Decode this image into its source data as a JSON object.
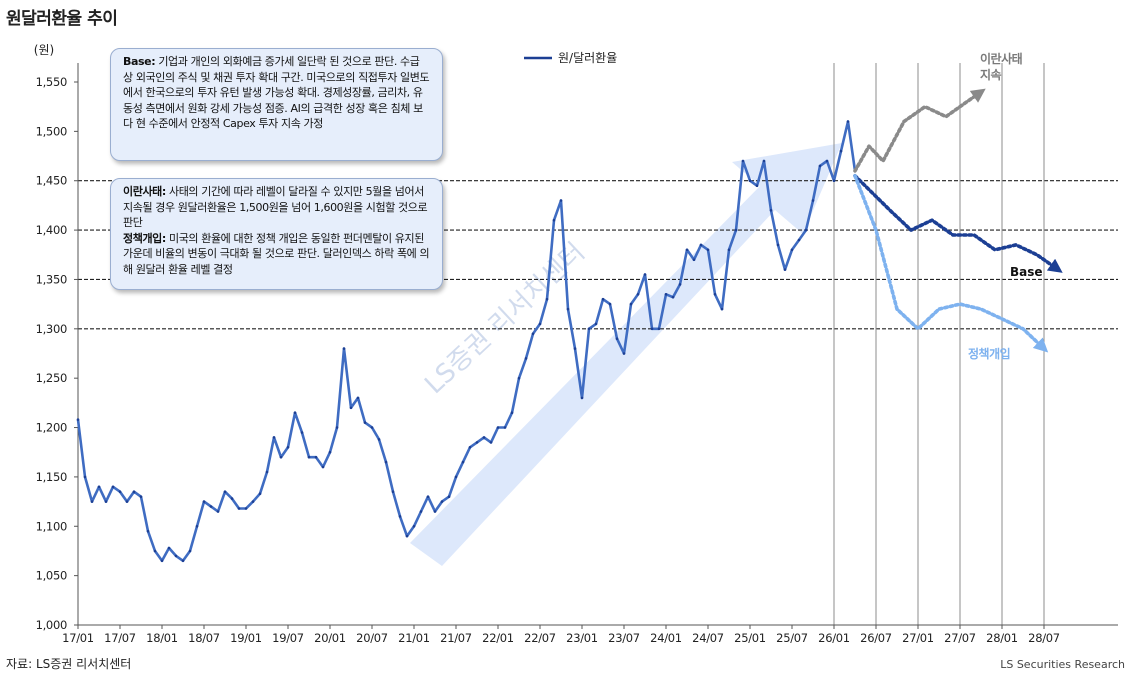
{
  "title": "원달러환율 추이",
  "source": "자료: LS증권 리서치센터",
  "credit": "LS Securities  Research",
  "watermark": "LS증권 리서치센터",
  "callouts": {
    "base": {
      "label": "Base:",
      "text": " 기업과 개인의 외화예금 증가세 일단락 된 것으로 판단. 수급 상 외국인의 주식 및 채권 투자 확대 구간. 미국으로의 직접투자 일변도에서 한국으로의 투자 유턴 발생 가능성 확대. 경제성장률, 금리차, 유동성 측면에서 원화 강세 가능성 점증. AI의 급격한 성장 혹은 침체 보다 현 수준에서 안정적 Capex 투자 지속 가정"
    },
    "iran": {
      "label": "이란사태:",
      "text": " 사태의 기간에 따라 레벨이 달라질 수 있지만 5월을 넘어서 지속될 경우 원달러환율은 1,500원을 넘어 1,600원을 시험할 것으로 판단"
    },
    "policy": {
      "label": "정책개입:",
      "text": " 미국의 환율에 대한 정책 개입은 동일한 펀더멘탈이 유지된 가운데 비율의 변동이 극대화 될 것으로 판단. 달러인덱스 하락 폭에 의해 원달러 환율 레벨 결정"
    }
  },
  "scenario_labels": {
    "iran_line1": "이란사태",
    "iran_line2": "지속",
    "base": "Base",
    "policy": "정책개입"
  },
  "colors": {
    "history": "#1c3f94",
    "history_mid": "#3f6cc2",
    "trend_arrow": "#dde8fb",
    "base_scenario": "#1c3f94",
    "iran_scenario": "#8a8a8a",
    "policy_scenario": "#7eb2ef"
  },
  "chart_data": {
    "type": "line",
    "title": "원달러환율 추이",
    "ylabel": "(원)",
    "xlabel": "",
    "ylim": [
      1000,
      1550
    ],
    "yticks": [
      1000,
      1050,
      1100,
      1150,
      1200,
      1250,
      1300,
      1350,
      1400,
      1450,
      1500,
      1550
    ],
    "ytick_labels": [
      "1,000",
      "1,050",
      "1,100",
      "1,150",
      "1,200",
      "1,250",
      "1,300",
      "1,350",
      "1,400",
      "1,450",
      "1,500",
      "1,550"
    ],
    "xticks": [
      "17/01",
      "17/07",
      "18/01",
      "18/07",
      "19/01",
      "19/07",
      "20/01",
      "20/07",
      "21/01",
      "21/07",
      "22/01",
      "22/07",
      "23/01",
      "23/07",
      "24/01",
      "24/07",
      "25/01",
      "25/07",
      "26/01",
      "26/07",
      "27/01",
      "27/07",
      "28/01",
      "28/07"
    ],
    "xlim": [
      "17/01",
      "28/12"
    ],
    "reference_lines_y": [
      1450,
      1400,
      1350,
      1300
    ],
    "vertical_lines_x": [
      "26/01",
      "26/07",
      "27/01",
      "27/07",
      "28/01",
      "28/07"
    ],
    "legend": {
      "position": "top-center",
      "entries": [
        "원/달러환율"
      ]
    },
    "grid": false,
    "series": [
      {
        "name": "원/달러환율",
        "style": "solid",
        "points": [
          [
            "17/01",
            1208
          ],
          [
            "17/02",
            1150
          ],
          [
            "17/03",
            1125
          ],
          [
            "17/04",
            1140
          ],
          [
            "17/05",
            1125
          ],
          [
            "17/06",
            1140
          ],
          [
            "17/07",
            1135
          ],
          [
            "17/08",
            1125
          ],
          [
            "17/09",
            1135
          ],
          [
            "17/10",
            1130
          ],
          [
            "17/11",
            1095
          ],
          [
            "17/12",
            1075
          ],
          [
            "18/01",
            1065
          ],
          [
            "18/02",
            1078
          ],
          [
            "18/03",
            1070
          ],
          [
            "18/04",
            1065
          ],
          [
            "18/05",
            1075
          ],
          [
            "18/06",
            1100
          ],
          [
            "18/07",
            1125
          ],
          [
            "18/08",
            1120
          ],
          [
            "18/09",
            1115
          ],
          [
            "18/10",
            1135
          ],
          [
            "18/11",
            1128
          ],
          [
            "18/12",
            1118
          ],
          [
            "19/01",
            1118
          ],
          [
            "19/02",
            1125
          ],
          [
            "19/03",
            1133
          ],
          [
            "19/04",
            1155
          ],
          [
            "19/05",
            1190
          ],
          [
            "19/06",
            1170
          ],
          [
            "19/07",
            1180
          ],
          [
            "19/08",
            1215
          ],
          [
            "19/09",
            1195
          ],
          [
            "19/10",
            1170
          ],
          [
            "19/11",
            1170
          ],
          [
            "19/12",
            1160
          ],
          [
            "20/01",
            1175
          ],
          [
            "20/02",
            1200
          ],
          [
            "20/03",
            1280
          ],
          [
            "20/04",
            1220
          ],
          [
            "20/05",
            1230
          ],
          [
            "20/06",
            1205
          ],
          [
            "20/07",
            1200
          ],
          [
            "20/08",
            1188
          ],
          [
            "20/09",
            1165
          ],
          [
            "20/10",
            1135
          ],
          [
            "20/11",
            1110
          ],
          [
            "20/12",
            1090
          ],
          [
            "21/01",
            1100
          ],
          [
            "21/02",
            1115
          ],
          [
            "21/03",
            1130
          ],
          [
            "21/04",
            1115
          ],
          [
            "21/05",
            1125
          ],
          [
            "21/06",
            1130
          ],
          [
            "21/07",
            1150
          ],
          [
            "21/08",
            1165
          ],
          [
            "21/09",
            1180
          ],
          [
            "21/10",
            1185
          ],
          [
            "21/11",
            1190
          ],
          [
            "21/12",
            1185
          ],
          [
            "22/01",
            1200
          ],
          [
            "22/02",
            1200
          ],
          [
            "22/03",
            1215
          ],
          [
            "22/04",
            1250
          ],
          [
            "22/05",
            1270
          ],
          [
            "22/06",
            1295
          ],
          [
            "22/07",
            1305
          ],
          [
            "22/08",
            1330
          ],
          [
            "22/09",
            1410
          ],
          [
            "22/10",
            1430
          ],
          [
            "22/11",
            1320
          ],
          [
            "22/12",
            1280
          ],
          [
            "23/01",
            1230
          ],
          [
            "23/02",
            1300
          ],
          [
            "23/03",
            1305
          ],
          [
            "23/04",
            1330
          ],
          [
            "23/05",
            1325
          ],
          [
            "23/06",
            1290
          ],
          [
            "23/07",
            1275
          ],
          [
            "23/08",
            1325
          ],
          [
            "23/09",
            1335
          ],
          [
            "23/10",
            1355
          ],
          [
            "23/11",
            1300
          ],
          [
            "23/12",
            1300
          ],
          [
            "24/01",
            1335
          ],
          [
            "24/02",
            1332
          ],
          [
            "24/03",
            1345
          ],
          [
            "24/04",
            1380
          ],
          [
            "24/05",
            1370
          ],
          [
            "24/06",
            1385
          ],
          [
            "24/07",
            1380
          ],
          [
            "24/08",
            1335
          ],
          [
            "24/09",
            1320
          ],
          [
            "24/10",
            1380
          ],
          [
            "24/11",
            1400
          ],
          [
            "24/12",
            1470
          ],
          [
            "25/01",
            1450
          ],
          [
            "25/02",
            1445
          ],
          [
            "25/03",
            1470
          ],
          [
            "25/04",
            1420
          ],
          [
            "25/05",
            1385
          ],
          [
            "25/06",
            1360
          ],
          [
            "25/07",
            1380
          ],
          [
            "25/08",
            1390
          ],
          [
            "25/09",
            1400
          ],
          [
            "25/10",
            1430
          ],
          [
            "25/11",
            1465
          ],
          [
            "25/12",
            1470
          ],
          [
            "26/01",
            1450
          ],
          [
            "26/02",
            1480
          ],
          [
            "26/03",
            1510
          ],
          [
            "26/04",
            1460
          ]
        ]
      },
      {
        "name": "Base",
        "style": "dotted",
        "points": [
          [
            "26/04",
            1455
          ],
          [
            "26/09",
            1420
          ],
          [
            "26/12",
            1400
          ],
          [
            "27/03",
            1410
          ],
          [
            "27/06",
            1395
          ],
          [
            "27/09",
            1395
          ],
          [
            "27/12",
            1380
          ],
          [
            "28/03",
            1385
          ],
          [
            "28/06",
            1375
          ],
          [
            "28/09",
            1360
          ]
        ]
      },
      {
        "name": "이란사태 지속",
        "style": "dotted",
        "points": [
          [
            "26/04",
            1460
          ],
          [
            "26/06",
            1485
          ],
          [
            "26/08",
            1470
          ],
          [
            "26/11",
            1510
          ],
          [
            "27/02",
            1525
          ],
          [
            "27/05",
            1515
          ],
          [
            "27/08",
            1530
          ],
          [
            "27/10",
            1540
          ]
        ]
      },
      {
        "name": "정책개입",
        "style": "dotted",
        "points": [
          [
            "26/04",
            1455
          ],
          [
            "26/07",
            1400
          ],
          [
            "26/10",
            1320
          ],
          [
            "27/01",
            1300
          ],
          [
            "27/04",
            1320
          ],
          [
            "27/07",
            1325
          ],
          [
            "27/10",
            1320
          ],
          [
            "28/01",
            1310
          ],
          [
            "28/04",
            1300
          ],
          [
            "28/07",
            1280
          ]
        ]
      }
    ]
  }
}
